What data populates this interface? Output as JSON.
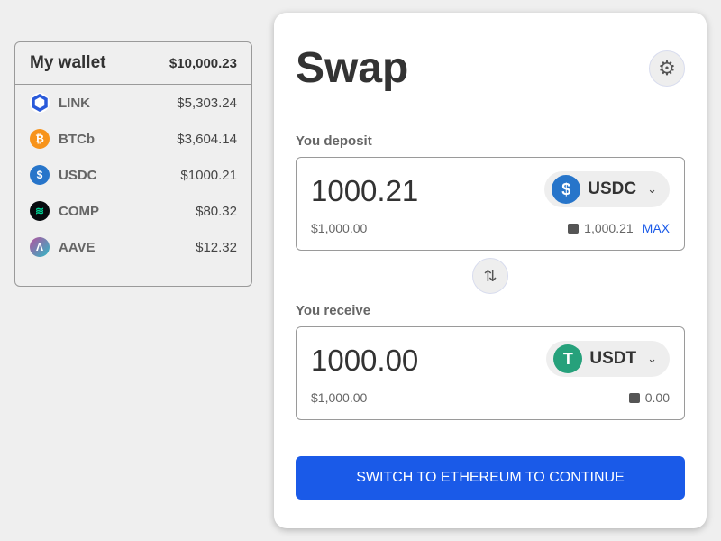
{
  "wallet": {
    "title": "My wallet",
    "total": "$10,000.23",
    "items": [
      {
        "symbol": "LINK",
        "value": "$5,303.24",
        "icon": "link-icon",
        "color": "#2a5ada"
      },
      {
        "symbol": "BTCb",
        "value": "$3,604.14",
        "icon": "bitcoin-icon",
        "color": "#f7931a"
      },
      {
        "symbol": "USDC",
        "value": "$1000.21",
        "icon": "usdc-icon",
        "color": "#2775ca"
      },
      {
        "symbol": "COMP",
        "value": "$80.32",
        "icon": "comp-icon",
        "color": "#070a0e"
      },
      {
        "symbol": "AAVE",
        "value": "$12.32",
        "icon": "aave-icon",
        "color": "#b6509e"
      }
    ]
  },
  "swap": {
    "title": "Swap",
    "deposit": {
      "label": "You deposit",
      "amount": "1000.21",
      "token": "USDC",
      "usd": "$1,000.00",
      "balance": "1,000.21",
      "max": "MAX"
    },
    "receive": {
      "label": "You receive",
      "amount": "1000.00",
      "token": "USDT",
      "usd": "$1,000.00",
      "balance": "0.00"
    },
    "cta": "SWITCH TO ETHEREUM TO CONTINUE"
  },
  "colors": {
    "accent": "#1a5ae8"
  }
}
